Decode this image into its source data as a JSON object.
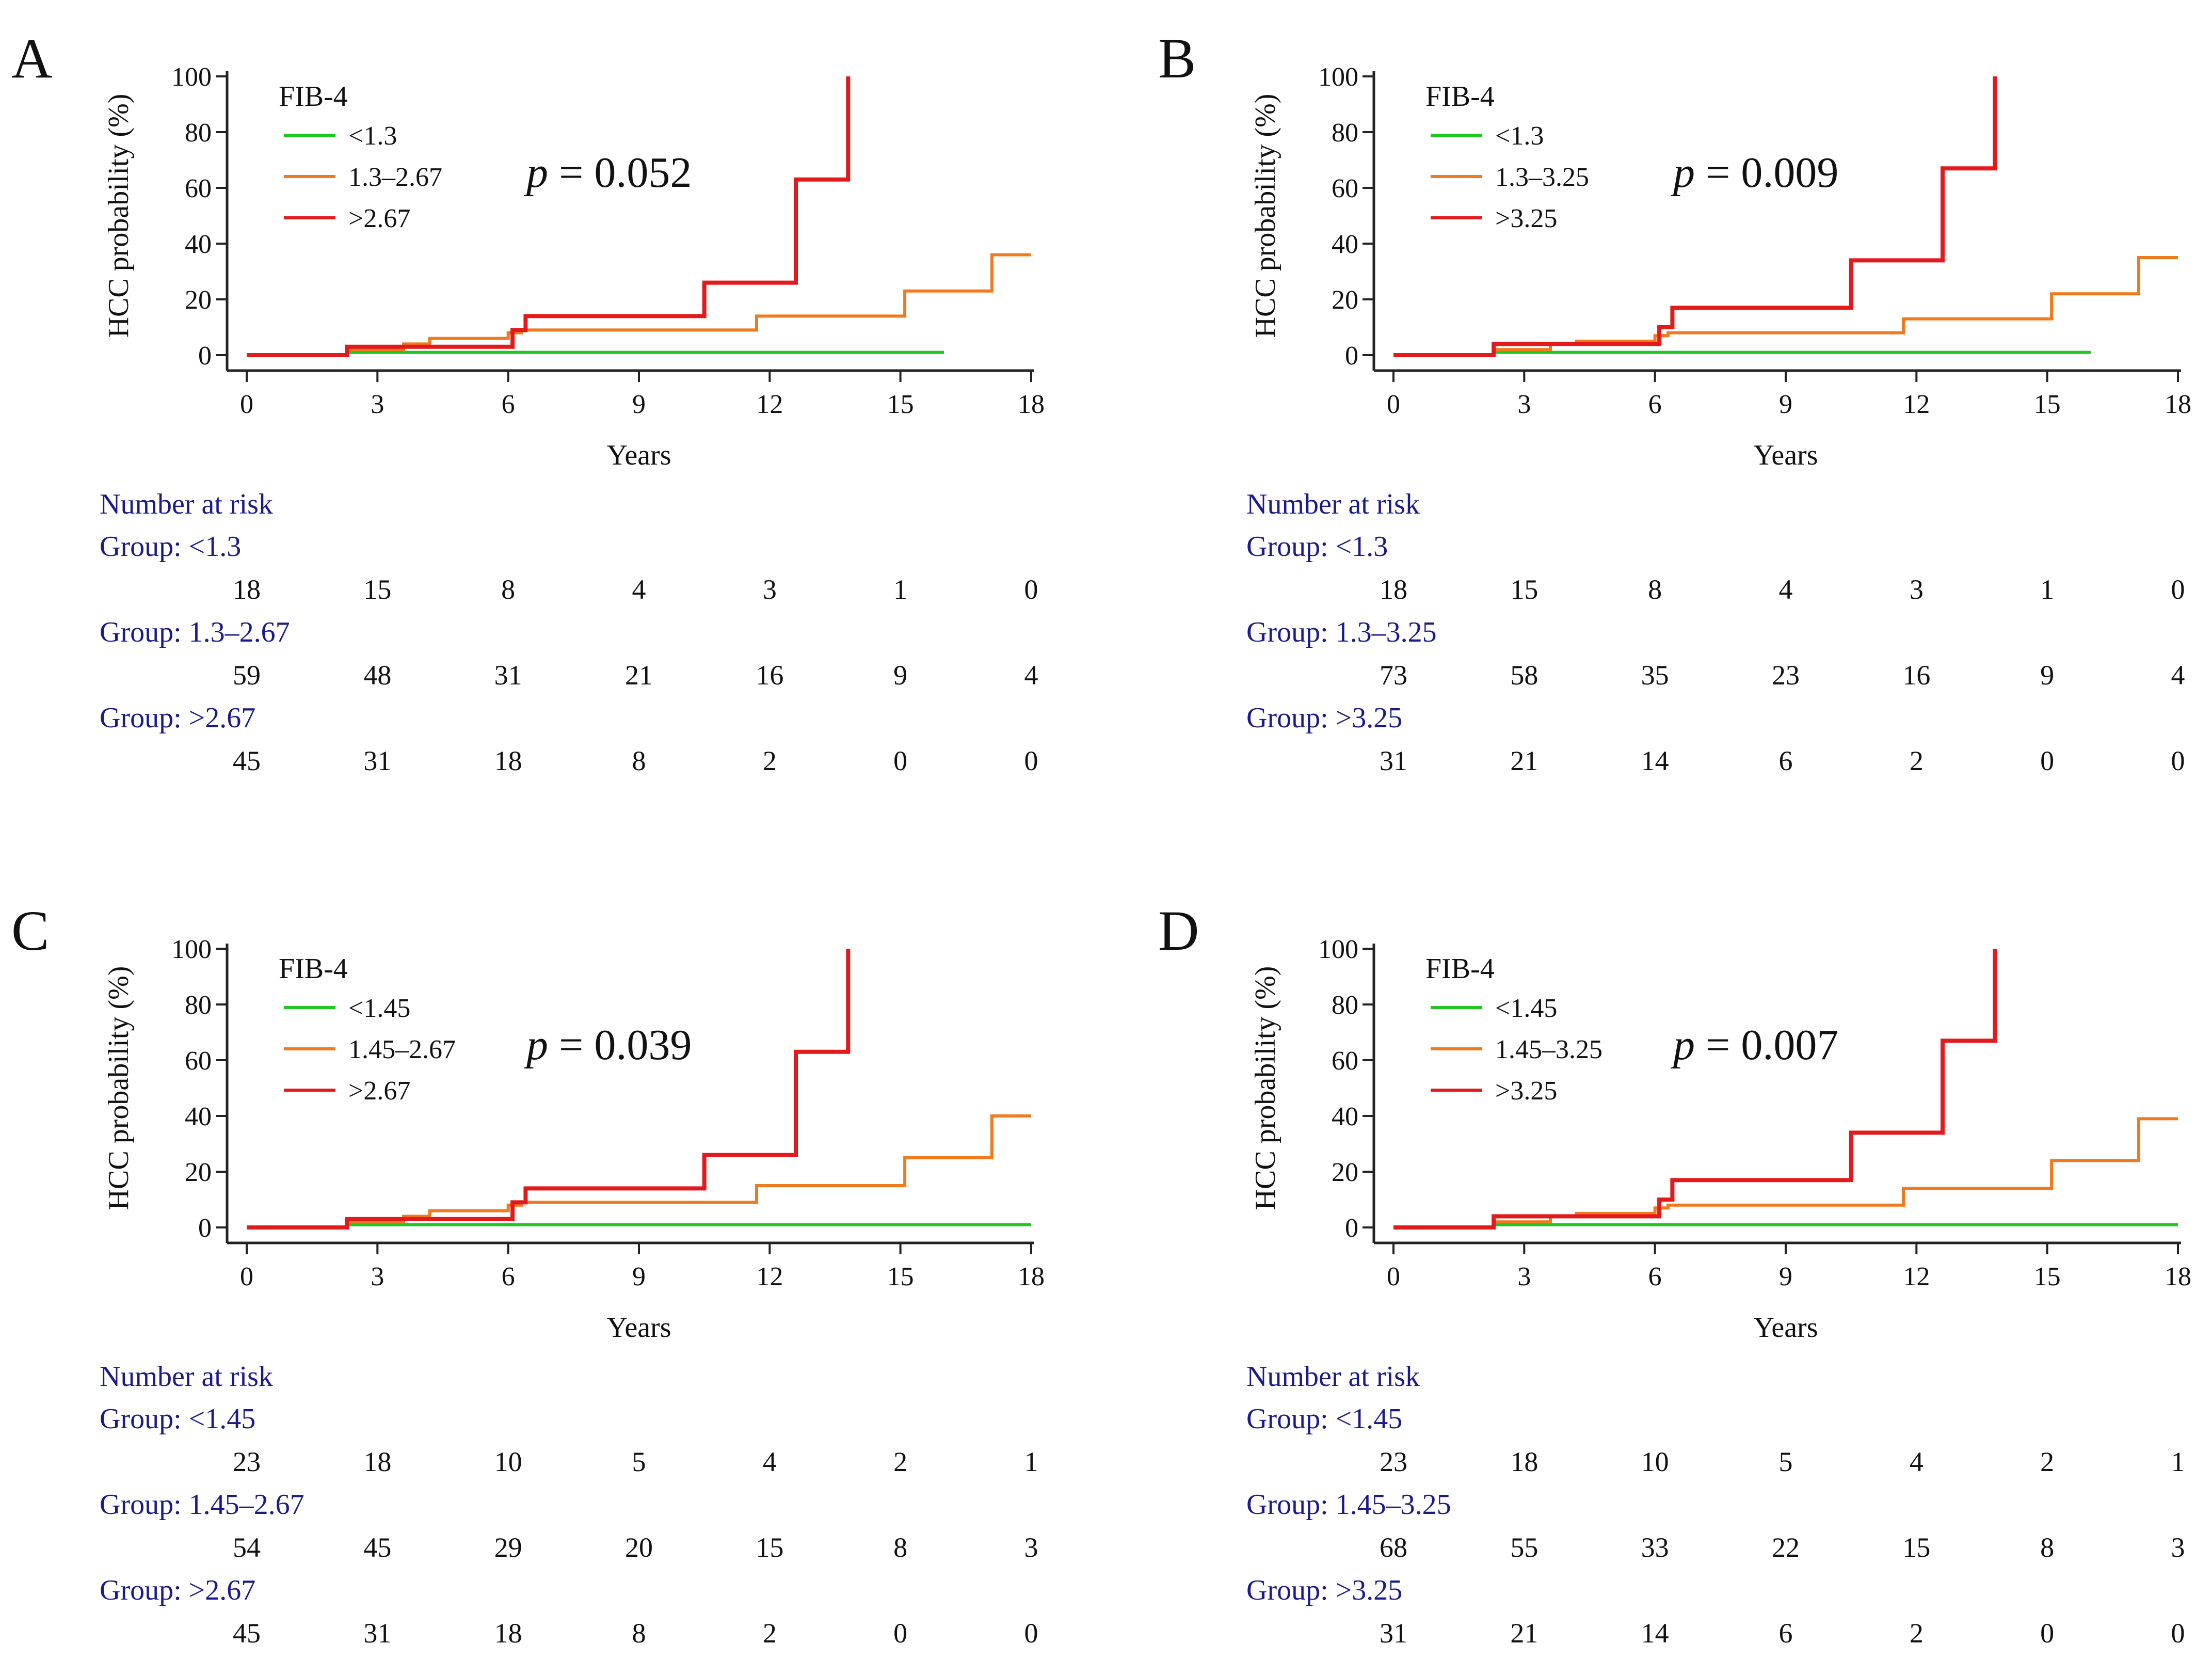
{
  "colors": {
    "low": "#1ec81e",
    "mid": "#f07a1e",
    "high": "#e31a1c",
    "axis": "#222222",
    "risk_text": "#1a1a8c"
  },
  "chart_data": [
    {
      "type": "line",
      "panel": "A",
      "xlabel": "Years",
      "ylabel": "HCC probability (%)",
      "xlim": [
        0,
        18
      ],
      "ylim": [
        0,
        100
      ],
      "xticks": [
        0,
        3,
        6,
        9,
        12,
        15,
        18
      ],
      "yticks": [
        0,
        20,
        40,
        60,
        80,
        100
      ],
      "legend_title": "FIB-4",
      "p_label": "p",
      "p_value": "= 0.052",
      "series": [
        {
          "name": "<1.3",
          "color": "low",
          "steps": [
            [
              0,
              0
            ],
            [
              2.3,
              0
            ],
            [
              2.3,
              1
            ],
            [
              16,
              1
            ]
          ]
        },
        {
          "name": "1.3–2.67",
          "color": "mid",
          "steps": [
            [
              0,
              0
            ],
            [
              2.3,
              0
            ],
            [
              2.3,
              2
            ],
            [
              3.6,
              2
            ],
            [
              3.6,
              4
            ],
            [
              4.2,
              4
            ],
            [
              4.2,
              6
            ],
            [
              6,
              6
            ],
            [
              6,
              8
            ],
            [
              6.3,
              8
            ],
            [
              6.3,
              9
            ],
            [
              11.7,
              9
            ],
            [
              11.7,
              14
            ],
            [
              15.1,
              14
            ],
            [
              15.1,
              23
            ],
            [
              17.1,
              23
            ],
            [
              17.1,
              36
            ],
            [
              18,
              36
            ]
          ]
        },
        {
          "name": ">2.67",
          "color": "high",
          "steps": [
            [
              0,
              0
            ],
            [
              2.3,
              0
            ],
            [
              2.3,
              3
            ],
            [
              6.1,
              3
            ],
            [
              6.1,
              9
            ],
            [
              6.4,
              9
            ],
            [
              6.4,
              14
            ],
            [
              10.5,
              14
            ],
            [
              10.5,
              26
            ],
            [
              12.6,
              26
            ],
            [
              12.6,
              63
            ],
            [
              13.8,
              63
            ],
            [
              13.8,
              100
            ]
          ]
        }
      ],
      "risk_title": "Number at risk",
      "risk_groups": [
        {
          "label": "Group: <1.3",
          "values": [
            18,
            15,
            8,
            4,
            3,
            1,
            0
          ]
        },
        {
          "label": "Group: 1.3–2.67",
          "values": [
            59,
            48,
            31,
            21,
            16,
            9,
            4
          ]
        },
        {
          "label": "Group: >2.67",
          "values": [
            45,
            31,
            18,
            8,
            2,
            0,
            0
          ]
        }
      ]
    },
    {
      "type": "line",
      "panel": "B",
      "xlabel": "Years",
      "ylabel": "HCC probability (%)",
      "xlim": [
        0,
        18
      ],
      "ylim": [
        0,
        100
      ],
      "xticks": [
        0,
        3,
        6,
        9,
        12,
        15,
        18
      ],
      "yticks": [
        0,
        20,
        40,
        60,
        80,
        100
      ],
      "legend_title": "FIB-4",
      "p_label": "p",
      "p_value": "= 0.009",
      "series": [
        {
          "name": "<1.3",
          "color": "low",
          "steps": [
            [
              0,
              0
            ],
            [
              2.3,
              0
            ],
            [
              2.3,
              1
            ],
            [
              16,
              1
            ]
          ]
        },
        {
          "name": "1.3–3.25",
          "color": "mid",
          "steps": [
            [
              0,
              0
            ],
            [
              2.3,
              0
            ],
            [
              2.3,
              2
            ],
            [
              3.6,
              2
            ],
            [
              3.6,
              4
            ],
            [
              4.2,
              4
            ],
            [
              4.2,
              5
            ],
            [
              6,
              5
            ],
            [
              6,
              7
            ],
            [
              6.3,
              7
            ],
            [
              6.3,
              8
            ],
            [
              11.7,
              8
            ],
            [
              11.7,
              13
            ],
            [
              15.1,
              13
            ],
            [
              15.1,
              22
            ],
            [
              17.1,
              22
            ],
            [
              17.1,
              35
            ],
            [
              18,
              35
            ]
          ]
        },
        {
          "name": ">3.25",
          "color": "high",
          "steps": [
            [
              0,
              0
            ],
            [
              2.3,
              0
            ],
            [
              2.3,
              4
            ],
            [
              6.1,
              4
            ],
            [
              6.1,
              10
            ],
            [
              6.4,
              10
            ],
            [
              6.4,
              17
            ],
            [
              10.5,
              17
            ],
            [
              10.5,
              34
            ],
            [
              12.6,
              34
            ],
            [
              12.6,
              67
            ],
            [
              13.8,
              67
            ],
            [
              13.8,
              100
            ]
          ]
        }
      ],
      "risk_title": "Number at risk",
      "risk_groups": [
        {
          "label": "Group: <1.3",
          "values": [
            18,
            15,
            8,
            4,
            3,
            1,
            0
          ]
        },
        {
          "label": "Group: 1.3–3.25",
          "values": [
            73,
            58,
            35,
            23,
            16,
            9,
            4
          ]
        },
        {
          "label": "Group: >3.25",
          "values": [
            31,
            21,
            14,
            6,
            2,
            0,
            0
          ]
        }
      ]
    },
    {
      "type": "line",
      "panel": "C",
      "xlabel": "Years",
      "ylabel": "HCC probability (%)",
      "xlim": [
        0,
        18
      ],
      "ylim": [
        0,
        100
      ],
      "xticks": [
        0,
        3,
        6,
        9,
        12,
        15,
        18
      ],
      "yticks": [
        0,
        20,
        40,
        60,
        80,
        100
      ],
      "legend_title": "FIB-4",
      "p_label": "p",
      "p_value": "= 0.039",
      "series": [
        {
          "name": "<1.45",
          "color": "low",
          "steps": [
            [
              0,
              0
            ],
            [
              2.3,
              0
            ],
            [
              2.3,
              1
            ],
            [
              18,
              1
            ]
          ]
        },
        {
          "name": "1.45–2.67",
          "color": "mid",
          "steps": [
            [
              0,
              0
            ],
            [
              2.3,
              0
            ],
            [
              2.3,
              2
            ],
            [
              3.6,
              2
            ],
            [
              3.6,
              4
            ],
            [
              4.2,
              4
            ],
            [
              4.2,
              6
            ],
            [
              6,
              6
            ],
            [
              6,
              8
            ],
            [
              6.3,
              8
            ],
            [
              6.3,
              9
            ],
            [
              11.7,
              9
            ],
            [
              11.7,
              15
            ],
            [
              15.1,
              15
            ],
            [
              15.1,
              25
            ],
            [
              17.1,
              25
            ],
            [
              17.1,
              40
            ],
            [
              18,
              40
            ]
          ]
        },
        {
          "name": ">2.67",
          "color": "high",
          "steps": [
            [
              0,
              0
            ],
            [
              2.3,
              0
            ],
            [
              2.3,
              3
            ],
            [
              6.1,
              3
            ],
            [
              6.1,
              9
            ],
            [
              6.4,
              9
            ],
            [
              6.4,
              14
            ],
            [
              10.5,
              14
            ],
            [
              10.5,
              26
            ],
            [
              12.6,
              26
            ],
            [
              12.6,
              63
            ],
            [
              13.8,
              63
            ],
            [
              13.8,
              100
            ]
          ]
        }
      ],
      "risk_title": "Number at risk",
      "risk_groups": [
        {
          "label": "Group: <1.45",
          "values": [
            23,
            18,
            10,
            5,
            4,
            2,
            1
          ]
        },
        {
          "label": "Group: 1.45–2.67",
          "values": [
            54,
            45,
            29,
            20,
            15,
            8,
            3
          ]
        },
        {
          "label": "Group: >2.67",
          "values": [
            45,
            31,
            18,
            8,
            2,
            0,
            0
          ]
        }
      ]
    },
    {
      "type": "line",
      "panel": "D",
      "xlabel": "Years",
      "ylabel": "HCC probability (%)",
      "xlim": [
        0,
        18
      ],
      "ylim": [
        0,
        100
      ],
      "xticks": [
        0,
        3,
        6,
        9,
        12,
        15,
        18
      ],
      "yticks": [
        0,
        20,
        40,
        60,
        80,
        100
      ],
      "legend_title": "FIB-4",
      "p_label": "p",
      "p_value": "= 0.007",
      "series": [
        {
          "name": "<1.45",
          "color": "low",
          "steps": [
            [
              0,
              0
            ],
            [
              2.3,
              0
            ],
            [
              2.3,
              1
            ],
            [
              18,
              1
            ]
          ]
        },
        {
          "name": "1.45–3.25",
          "color": "mid",
          "steps": [
            [
              0,
              0
            ],
            [
              2.3,
              0
            ],
            [
              2.3,
              2
            ],
            [
              3.6,
              2
            ],
            [
              3.6,
              4
            ],
            [
              4.2,
              4
            ],
            [
              4.2,
              5
            ],
            [
              6,
              5
            ],
            [
              6,
              7
            ],
            [
              6.3,
              7
            ],
            [
              6.3,
              8
            ],
            [
              11.7,
              8
            ],
            [
              11.7,
              14
            ],
            [
              15.1,
              14
            ],
            [
              15.1,
              24
            ],
            [
              17.1,
              24
            ],
            [
              17.1,
              39
            ],
            [
              18,
              39
            ]
          ]
        },
        {
          "name": ">3.25",
          "color": "high",
          "steps": [
            [
              0,
              0
            ],
            [
              2.3,
              0
            ],
            [
              2.3,
              4
            ],
            [
              6.1,
              4
            ],
            [
              6.1,
              10
            ],
            [
              6.4,
              10
            ],
            [
              6.4,
              17
            ],
            [
              10.5,
              17
            ],
            [
              10.5,
              34
            ],
            [
              12.6,
              34
            ],
            [
              12.6,
              67
            ],
            [
              13.8,
              67
            ],
            [
              13.8,
              100
            ]
          ]
        }
      ],
      "risk_title": "Number at risk",
      "risk_groups": [
        {
          "label": "Group: <1.45",
          "values": [
            23,
            18,
            10,
            5,
            4,
            2,
            1
          ]
        },
        {
          "label": "Group: 1.45–3.25",
          "values": [
            68,
            55,
            33,
            22,
            15,
            8,
            3
          ]
        },
        {
          "label": "Group: >3.25",
          "values": [
            31,
            21,
            14,
            6,
            2,
            0,
            0
          ]
        }
      ]
    }
  ]
}
